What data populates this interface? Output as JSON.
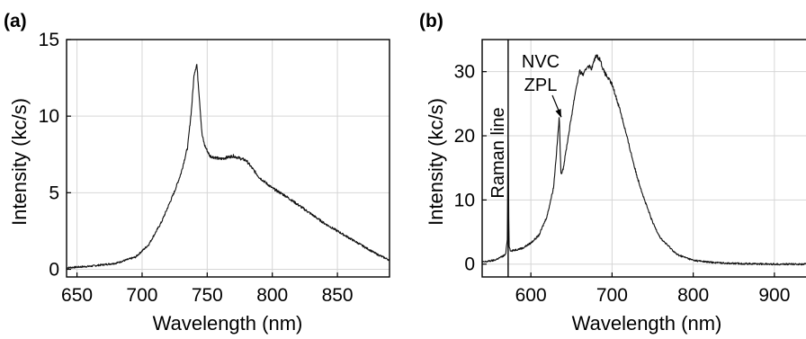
{
  "chart_data": [
    {
      "panel": "(a)",
      "type": "line",
      "xlabel": "Wavelength (nm)",
      "ylabel": "Intensity (kc/s)",
      "xlim": [
        642,
        890
      ],
      "ylim": [
        -0.5,
        15
      ],
      "xticks": [
        650,
        700,
        750,
        800,
        850
      ],
      "yticks": [
        0,
        5,
        10,
        15
      ],
      "grid": true,
      "series": [
        {
          "x": [
            642,
            660,
            680,
            695,
            705,
            715,
            725,
            730,
            735,
            738,
            740,
            742,
            744,
            746,
            748,
            752,
            760,
            770,
            780,
            790,
            800,
            810,
            820,
            830,
            840,
            850,
            860,
            870,
            880,
            890
          ],
          "y": [
            0.1,
            0.2,
            0.4,
            0.8,
            1.6,
            3.1,
            5.1,
            6.3,
            8.0,
            10.5,
            12.8,
            13.4,
            11.2,
            8.8,
            8.1,
            7.4,
            7.2,
            7.4,
            7.1,
            6.0,
            5.3,
            4.8,
            4.2,
            3.6,
            3.0,
            2.5,
            2.0,
            1.5,
            1.0,
            0.6
          ]
        }
      ]
    },
    {
      "panel": "(b)",
      "type": "line",
      "xlabel": "Wavelength (nm)",
      "ylabel": "Intensity (kc/s)",
      "xlim": [
        540,
        950
      ],
      "ylim": [
        -2,
        35
      ],
      "xticks": [
        600,
        700,
        800,
        900
      ],
      "yticks": [
        0,
        10,
        20,
        30
      ],
      "grid": true,
      "annotations": [
        {
          "text": "Raman line",
          "x": 572
        },
        {
          "text": "NVC",
          "x": 635,
          "y": 23
        },
        {
          "text": "ZPL",
          "x": 635,
          "y": 23
        }
      ],
      "series": [
        {
          "x": [
            540,
            555,
            565,
            569,
            571,
            572,
            573,
            575,
            580,
            590,
            600,
            610,
            620,
            628,
            632,
            635,
            637,
            640,
            645,
            650,
            655,
            660,
            665,
            670,
            675,
            680,
            685,
            690,
            700,
            710,
            720,
            730,
            740,
            750,
            760,
            780,
            800,
            820,
            850,
            900,
            950
          ],
          "y": [
            0.3,
            0.6,
            1.2,
            1.5,
            4.0,
            24.0,
            3.0,
            2.0,
            2.2,
            2.5,
            3.3,
            4.5,
            7.5,
            12.0,
            18.0,
            23.0,
            14.0,
            15.0,
            19.0,
            23.0,
            27.0,
            30.0,
            29.5,
            31.0,
            30.5,
            32.5,
            32.0,
            30.0,
            28.0,
            24.0,
            19.0,
            14.0,
            10.0,
            6.5,
            4.0,
            1.5,
            0.6,
            0.3,
            0.1,
            0.0,
            0.0
          ]
        }
      ]
    }
  ]
}
